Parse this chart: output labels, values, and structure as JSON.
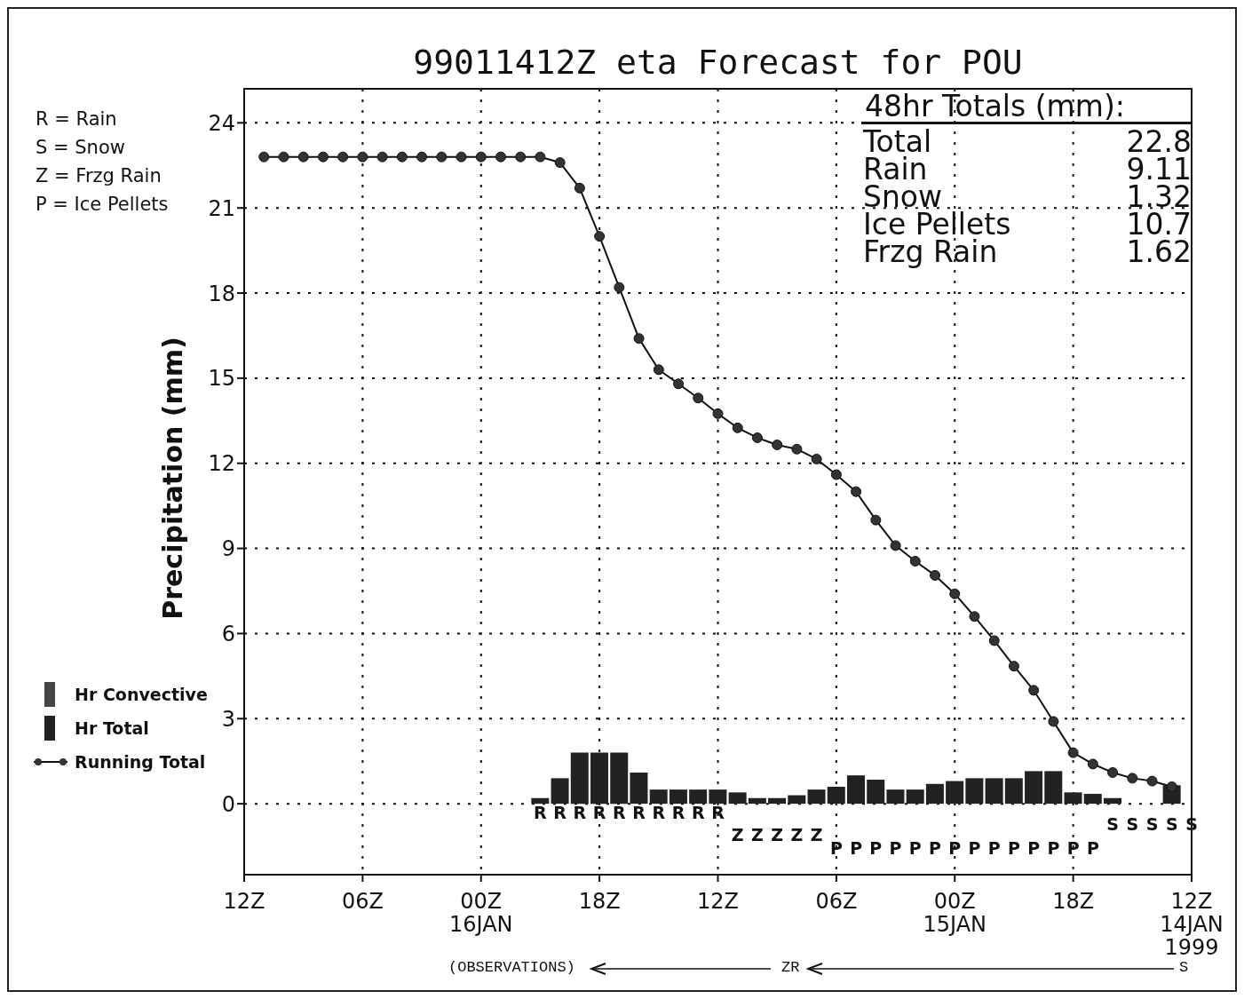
{
  "chart_data": {
    "type": "bar",
    "title": "99011412Z eta Forecast for POU",
    "ylabel": "Precipitation (mm)",
    "xlim": [
      "1999-01-16T12:00",
      "1999-01-14T12:00"
    ],
    "xticks": [
      {
        "value": "1999-01-16T12:00",
        "label": "12Z"
      },
      {
        "value": "1999-01-16T06:00",
        "label": "06Z"
      },
      {
        "value": "1999-01-16T00:00",
        "label": "00Z\n16JAN"
      },
      {
        "value": "1999-01-15T18:00",
        "label": "18Z"
      },
      {
        "value": "1999-01-15T12:00",
        "label": "12Z"
      },
      {
        "value": "1999-01-15T06:00",
        "label": "06Z"
      },
      {
        "value": "1999-01-15T00:00",
        "label": "00Z\n15JAN"
      },
      {
        "value": "1999-01-14T18:00",
        "label": "18Z"
      },
      {
        "value": "1999-01-14T12:00",
        "label": "12Z\n14JAN\n1999"
      }
    ],
    "ylim": [
      -2.5,
      25.2
    ],
    "yticks": [
      0,
      3,
      6,
      9,
      12,
      15,
      18,
      21,
      24
    ],
    "grid": true,
    "legend": "left",
    "series": [
      {
        "name": "Hr Total",
        "color": "#222222",
        "x": [
          "1999-01-15T21:00",
          "1999-01-15T20:00",
          "1999-01-15T19:00",
          "1999-01-15T18:00",
          "1999-01-15T17:00",
          "1999-01-15T16:00",
          "1999-01-15T15:00",
          "1999-01-15T14:00",
          "1999-01-15T13:00",
          "1999-01-15T12:00",
          "1999-01-15T11:00",
          "1999-01-15T10:00",
          "1999-01-15T09:00",
          "1999-01-15T08:00",
          "1999-01-15T07:00",
          "1999-01-15T06:00",
          "1999-01-15T05:00",
          "1999-01-15T04:00",
          "1999-01-15T03:00",
          "1999-01-15T02:00",
          "1999-01-15T01:00",
          "1999-01-15T00:00",
          "1999-01-14T23:00",
          "1999-01-14T22:00",
          "1999-01-14T21:00",
          "1999-01-14T20:00",
          "1999-01-14T19:00",
          "1999-01-14T18:00",
          "1999-01-14T17:00",
          "1999-01-14T16:00",
          "1999-01-14T15:00",
          "1999-01-14T14:00",
          "1999-01-14T13:00",
          "1999-01-14T12:00"
        ],
        "values": [
          0.2,
          0.9,
          1.8,
          1.8,
          1.8,
          1.1,
          0.5,
          0.5,
          0.5,
          0.5,
          0.4,
          0.2,
          0.2,
          0.3,
          0.5,
          0.6,
          1.0,
          0.85,
          0.5,
          0.5,
          0.7,
          0.8,
          0.9,
          0.9,
          0.9,
          1.15,
          1.15,
          0.4,
          0.35,
          0.2,
          0,
          0,
          0.65,
          0
        ],
        "value_labels": [
          "R",
          "R",
          "R",
          "R",
          "R",
          "R",
          "R",
          "R",
          "R",
          "R",
          "Z",
          "Z",
          "Z",
          "Z",
          "Z",
          "P",
          "P",
          "P",
          "P",
          "P",
          "P",
          "P",
          "P",
          "P",
          "P",
          "P",
          "P",
          "P",
          "P",
          "S",
          "S",
          "S",
          "S",
          "S"
        ]
      },
      {
        "name": "Hr Convective",
        "color": "#444444",
        "x": [
          "1999-01-15T21:00",
          "1999-01-15T20:00",
          "1999-01-15T19:00",
          "1999-01-15T18:00",
          "1999-01-15T17:00",
          "1999-01-15T16:00",
          "1999-01-15T15:00",
          "1999-01-15T14:00",
          "1999-01-15T13:00",
          "1999-01-15T12:00",
          "1999-01-15T11:00",
          "1999-01-15T10:00",
          "1999-01-15T09:00",
          "1999-01-15T08:00",
          "1999-01-15T07:00",
          "1999-01-15T06:00",
          "1999-01-15T05:00",
          "1999-01-15T04:00",
          "1999-01-15T03:00",
          "1999-01-15T02:00",
          "1999-01-15T01:00",
          "1999-01-15T00:00",
          "1999-01-14T23:00",
          "1999-01-14T22:00",
          "1999-01-14T21:00",
          "1999-01-14T20:00",
          "1999-01-14T19:00",
          "1999-01-14T18:00",
          "1999-01-14T17:00",
          "1999-01-14T16:00",
          "1999-01-14T15:00",
          "1999-01-14T14:00",
          "1999-01-14T13:00",
          "1999-01-14T12:00"
        ],
        "values": [
          0,
          0,
          0,
          0,
          0,
          0,
          0,
          0,
          0,
          0,
          0,
          0,
          0,
          0,
          0,
          0,
          0,
          0,
          0,
          0,
          0,
          0,
          0,
          0,
          0,
          0,
          0,
          0,
          0,
          0,
          0,
          0,
          0,
          0
        ]
      },
      {
        "name": "Running Total",
        "type": "line",
        "color": "#111111",
        "marker": "circle",
        "x": [
          "1999-01-16T11:00",
          "1999-01-16T10:00",
          "1999-01-16T09:00",
          "1999-01-16T08:00",
          "1999-01-16T07:00",
          "1999-01-16T06:00",
          "1999-01-16T05:00",
          "1999-01-16T04:00",
          "1999-01-16T03:00",
          "1999-01-16T02:00",
          "1999-01-16T01:00",
          "1999-01-16T00:00",
          "1999-01-15T23:00",
          "1999-01-15T22:00",
          "1999-01-15T21:00",
          "1999-01-15T20:00",
          "1999-01-15T19:00",
          "1999-01-15T18:00",
          "1999-01-15T17:00",
          "1999-01-15T16:00",
          "1999-01-15T15:00",
          "1999-01-15T14:00",
          "1999-01-15T13:00",
          "1999-01-15T12:00",
          "1999-01-15T11:00",
          "1999-01-15T10:00",
          "1999-01-15T09:00",
          "1999-01-15T08:00",
          "1999-01-15T07:00",
          "1999-01-15T06:00",
          "1999-01-15T05:00",
          "1999-01-15T04:00",
          "1999-01-15T03:00",
          "1999-01-15T02:00",
          "1999-01-15T01:00",
          "1999-01-15T00:00",
          "1999-01-14T23:00",
          "1999-01-14T22:00",
          "1999-01-14T21:00",
          "1999-01-14T20:00",
          "1999-01-14T19:00",
          "1999-01-14T18:00",
          "1999-01-14T17:00",
          "1999-01-14T16:00",
          "1999-01-14T15:00",
          "1999-01-14T14:00",
          "1999-01-14T13:00"
        ],
        "values": [
          22.8,
          22.8,
          22.8,
          22.8,
          22.8,
          22.8,
          22.8,
          22.8,
          22.8,
          22.8,
          22.8,
          22.8,
          22.8,
          22.8,
          22.8,
          22.6,
          21.7,
          20.0,
          18.2,
          16.4,
          15.3,
          14.8,
          14.3,
          13.75,
          13.25,
          12.9,
          12.65,
          12.5,
          12.15,
          11.6,
          11.0,
          10.0,
          9.1,
          8.55,
          8.05,
          7.4,
          6.6,
          5.75,
          4.85,
          4.0,
          2.9,
          1.8,
          1.4,
          1.1,
          0.9,
          0.8,
          0.6
        ]
      }
    ],
    "annotations": [
      "R = Rain",
      "S = Snow",
      "Z = Frzg Rain",
      "P = Ice Pellets",
      "48hr Totals (mm):",
      "Total",
      "Rain",
      "Snow",
      "Ice Pellets",
      "Frzg Rain",
      "22.8",
      "9.11",
      "1.32",
      "10.7",
      "1.62",
      "(OBSERVATIONS)",
      "ZR",
      "S"
    ]
  }
}
